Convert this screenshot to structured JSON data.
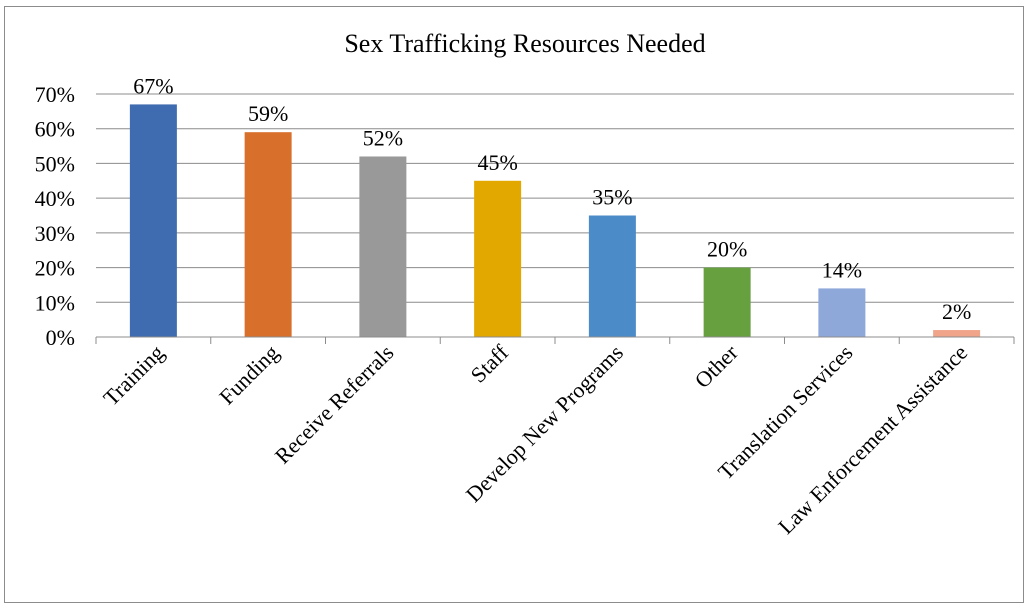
{
  "chart_data": {
    "type": "bar",
    "title": "Sex Trafficking Resources Needed",
    "xlabel": "",
    "ylabel": "",
    "ylim": [
      0,
      70
    ],
    "yticks": [
      "0%",
      "10%",
      "20%",
      "30%",
      "40%",
      "50%",
      "60%",
      "70%"
    ],
    "categories": [
      "Training",
      "Funding",
      "Receive Referrals",
      "Staff",
      "Develop New Programs",
      "Other",
      "Translation Services",
      "Law Enforcement Assistance"
    ],
    "values": [
      67,
      59,
      52,
      45,
      35,
      20,
      14,
      2
    ],
    "data_labels": [
      "67%",
      "59%",
      "52%",
      "45%",
      "35%",
      "20%",
      "14%",
      "2%"
    ],
    "colors": [
      "#3F6BB0",
      "#D8702B",
      "#999999",
      "#E3A800",
      "#4A8BC8",
      "#67A03E",
      "#8FA8DA",
      "#F0A48A"
    ],
    "grid": true,
    "legend": "none"
  }
}
